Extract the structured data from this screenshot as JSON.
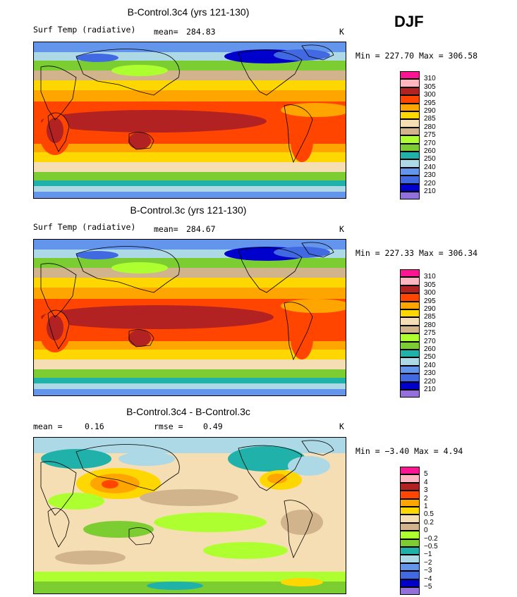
{
  "season": "DJF",
  "panels": [
    {
      "title": "B-Control.3c4 (yrs 121-130)",
      "variable": "Surf Temp (radiative)",
      "stat_label": "mean=",
      "stat_value": "284.83",
      "units": "K",
      "minmax": "Min = 227.70 Max = 306.58"
    },
    {
      "title": "B-Control.3c (yrs 121-130)",
      "variable": "Surf Temp (radiative)",
      "stat_label": "mean=",
      "stat_value": "284.67",
      "units": "K",
      "minmax": "Min = 227.33 Max = 306.34"
    },
    {
      "title": "B-Control.3c4 - B-Control.3c",
      "mean_label": "mean =",
      "mean_value": "0.16",
      "rmse_label": "rmse =",
      "rmse_value": "0.49",
      "units": "K",
      "minmax": "Min = −3.40 Max =    4.94"
    }
  ],
  "chart_data": [
    {
      "type": "heatmap",
      "title": "B-Control.3c4 (yrs 121-130)",
      "variable": "Surf Temp (radiative)",
      "units": "K",
      "mean": 284.83,
      "min": 227.7,
      "max": 306.58,
      "colorbar_levels": [
        "310",
        "305",
        "300",
        "295",
        "290",
        "285",
        "280",
        "275",
        "270",
        "260",
        "250",
        "240",
        "230",
        "220",
        "210"
      ],
      "colorbar_colors": [
        "#ff1493",
        "#ffb6c1",
        "#b22222",
        "#ff4500",
        "#ffa500",
        "#ffd700",
        "#f5deb3",
        "#d2b48c",
        "#adff2f",
        "#7ccd32",
        "#20b2aa",
        "#add8e6",
        "#6495ed",
        "#4169e1",
        "#0000cd",
        "#9370db"
      ]
    },
    {
      "type": "heatmap",
      "title": "B-Control.3c (yrs 121-130)",
      "variable": "Surf Temp (radiative)",
      "units": "K",
      "mean": 284.67,
      "min": 227.33,
      "max": 306.34,
      "colorbar_levels": [
        "310",
        "305",
        "300",
        "295",
        "290",
        "285",
        "280",
        "275",
        "270",
        "260",
        "250",
        "240",
        "230",
        "220",
        "210"
      ],
      "colorbar_colors": [
        "#ff1493",
        "#ffb6c1",
        "#b22222",
        "#ff4500",
        "#ffa500",
        "#ffd700",
        "#f5deb3",
        "#d2b48c",
        "#adff2f",
        "#7ccd32",
        "#20b2aa",
        "#add8e6",
        "#6495ed",
        "#4169e1",
        "#0000cd",
        "#9370db"
      ]
    },
    {
      "type": "heatmap",
      "title": "B-Control.3c4 - B-Control.3c",
      "units": "K",
      "mean": 0.16,
      "rmse": 0.49,
      "min": -3.4,
      "max": 4.94,
      "colorbar_levels": [
        "5",
        "4",
        "3",
        "2",
        "1",
        "0.5",
        "0.2",
        "0",
        "−0.2",
        "−0.5",
        "−1",
        "−2",
        "−3",
        "−4",
        "−5"
      ],
      "colorbar_colors": [
        "#ff1493",
        "#ffb6c1",
        "#b22222",
        "#ff4500",
        "#ffa500",
        "#ffd700",
        "#f5deb3",
        "#d2b48c",
        "#adff2f",
        "#7ccd32",
        "#20b2aa",
        "#add8e6",
        "#6495ed",
        "#4169e1",
        "#0000cd",
        "#9370db"
      ]
    }
  ]
}
